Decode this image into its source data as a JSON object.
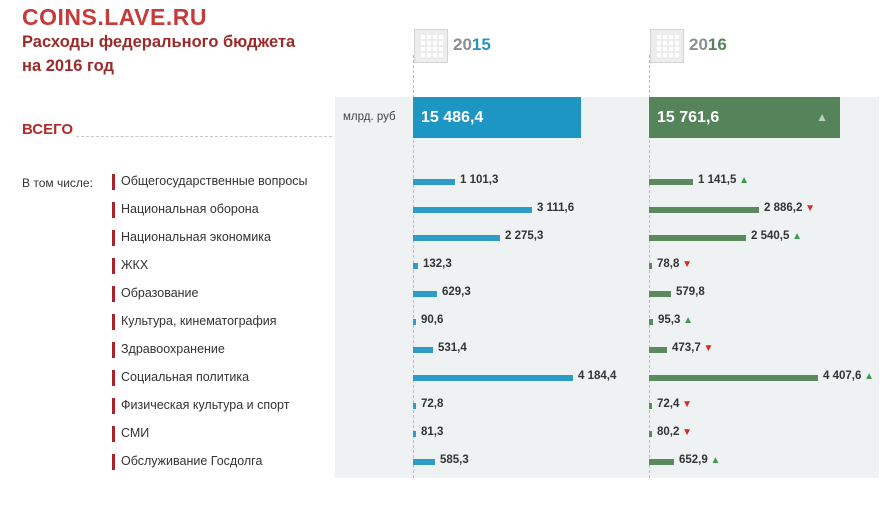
{
  "watermark": "COINS.LAVE.RU",
  "title_line1": "Расходы федерального бюджета",
  "title_line2": "на 2016 год",
  "unit": "млрд. руб",
  "including_label": "В том числе:",
  "colors": {
    "y2015": "#2d9cc6",
    "y2016": "#5a8a5d",
    "accent": "#a8232a",
    "up": "#3e9a4f",
    "down": "#d42a2a"
  },
  "chart_data": {
    "type": "bar",
    "title": "Расходы федерального бюджета на 2016 год",
    "unit": "млрд. руб",
    "years": [
      {
        "prefix": "20",
        "suffix": "15"
      },
      {
        "prefix": "20",
        "suffix": "16"
      }
    ],
    "total": {
      "label": "ВСЕГО",
      "v2015": 15486.4,
      "v2016": 15761.6,
      "v2015_label": "15 486,4",
      "v2016_label": "15 761,6",
      "trend": "up"
    },
    "categories": [
      {
        "name": "Общегосударственные вопросы",
        "v2015": 1101.3,
        "v2016": 1141.5,
        "v2015_label": "1 101,3",
        "v2016_label": "1 141,5",
        "trend": "up"
      },
      {
        "name": "Национальная оборона",
        "v2015": 3111.6,
        "v2016": 2886.2,
        "v2015_label": "3 111,6",
        "v2016_label": "2 886,2",
        "trend": "down"
      },
      {
        "name": "Национальная экономика",
        "v2015": 2275.3,
        "v2016": 2540.5,
        "v2015_label": "2 275,3",
        "v2016_label": "2 540,5",
        "trend": "up"
      },
      {
        "name": "ЖКХ",
        "v2015": 132.3,
        "v2016": 78.8,
        "v2015_label": "132,3",
        "v2016_label": "78,8",
        "trend": "down"
      },
      {
        "name": "Образование",
        "v2015": 629.3,
        "v2016": 579.8,
        "v2015_label": "629,3",
        "v2016_label": "579,8",
        "trend": ""
      },
      {
        "name": "Культура, кинематография",
        "v2015": 90.6,
        "v2016": 95.3,
        "v2015_label": "90,6",
        "v2016_label": "95,3",
        "trend": "up"
      },
      {
        "name": "Здравоохранение",
        "v2015": 531.4,
        "v2016": 473.7,
        "v2015_label": "531,4",
        "v2016_label": "473,7",
        "trend": "down"
      },
      {
        "name": "Социальная политика",
        "v2015": 4184.4,
        "v2016": 4407.6,
        "v2015_label": "4 184,4",
        "v2016_label": "4 407,6",
        "trend": "up"
      },
      {
        "name": "Физическая культура и спорт",
        "v2015": 72.8,
        "v2016": 72.4,
        "v2015_label": "72,8",
        "v2016_label": "72,4",
        "trend": "down"
      },
      {
        "name": "СМИ",
        "v2015": 81.3,
        "v2016": 80.2,
        "v2015_label": "81,3",
        "v2016_label": "80,2",
        "trend": "down"
      },
      {
        "name": "Обслуживание Госдолга",
        "v2015": 585.3,
        "v2016": 652.9,
        "v2015_label": "585,3",
        "v2016_label": "652,9",
        "trend": "up"
      }
    ]
  }
}
